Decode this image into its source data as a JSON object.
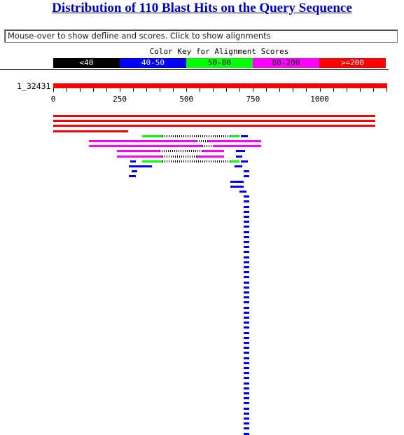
{
  "title": "Distribution of 110 Blast Hits on the Query Sequence",
  "info_text": "Mouse-over to show defline and scores. Click to show alignments",
  "color_key": {
    "title": "Color Key for Alignment Scores",
    "segments": [
      {
        "label": "<40",
        "bg": "#000000",
        "fg": "#ffffff"
      },
      {
        "label": "40-50",
        "bg": "#0000ff",
        "fg": "#ffffff"
      },
      {
        "label": "50-80",
        "bg": "#00ff00",
        "fg": "#000000"
      },
      {
        "label": "80-200",
        "bg": "#ff00ff",
        "fg": "#000000"
      },
      {
        "label": ">=200",
        "bg": "#ff0000",
        "fg": "#ffffff"
      }
    ]
  },
  "query": {
    "label": "1_32431",
    "color": "#ff0000",
    "length": 1210,
    "tick_labels": [
      "0",
      "250",
      "500",
      "750",
      "1000"
    ],
    "tick_values": [
      0,
      250,
      500,
      750,
      1000
    ]
  },
  "hits": [
    {
      "segments": [
        {
          "start": 1,
          "end": 1210,
          "color": "#ff0000"
        }
      ]
    },
    {
      "segments": [
        {
          "start": 1,
          "end": 1210,
          "color": "#ff0000"
        }
      ]
    },
    {
      "segments": [
        {
          "start": 1,
          "end": 1210,
          "color": "#ff0000"
        }
      ]
    },
    {
      "segments": [
        {
          "start": 1,
          "end": 280,
          "color": "#ff0000"
        }
      ]
    },
    {
      "segments": [
        {
          "start": 335,
          "end": 410,
          "color": "#00ff00"
        },
        {
          "start": 410,
          "end": 665,
          "hatch": true
        },
        {
          "start": 665,
          "end": 700,
          "color": "#00ff00"
        },
        {
          "start": 705,
          "end": 730,
          "color": "#0000ff"
        }
      ]
    },
    {
      "segments": [
        {
          "start": 135,
          "end": 540,
          "color": "#ff00ff"
        },
        {
          "start": 540,
          "end": 580,
          "hatch": true
        },
        {
          "start": 580,
          "end": 780,
          "color": "#ff00ff"
        }
      ]
    },
    {
      "segments": [
        {
          "start": 135,
          "end": 560,
          "color": "#ff00ff"
        },
        {
          "start": 560,
          "end": 600,
          "hatch": true
        },
        {
          "start": 600,
          "end": 780,
          "color": "#ff00ff"
        }
      ]
    },
    {
      "segments": [
        {
          "start": 240,
          "end": 400,
          "color": "#ff00ff"
        },
        {
          "start": 400,
          "end": 560,
          "hatch": true
        },
        {
          "start": 560,
          "end": 640,
          "color": "#ff00ff"
        },
        {
          "start": 685,
          "end": 720,
          "color": "#0000ff"
        }
      ]
    },
    {
      "segments": [
        {
          "start": 240,
          "end": 410,
          "color": "#ff00ff"
        },
        {
          "start": 410,
          "end": 540,
          "hatch": true
        },
        {
          "start": 540,
          "end": 640,
          "color": "#ff00ff"
        },
        {
          "start": 685,
          "end": 710,
          "color": "#0000ff"
        }
      ]
    },
    {
      "segments": [
        {
          "start": 290,
          "end": 310,
          "color": "#0000ff"
        },
        {
          "start": 335,
          "end": 410,
          "color": "#00ff00"
        },
        {
          "start": 410,
          "end": 665,
          "hatch": true
        },
        {
          "start": 665,
          "end": 700,
          "color": "#00ff00"
        },
        {
          "start": 705,
          "end": 730,
          "color": "#0000ff"
        }
      ]
    },
    {
      "segments": [
        {
          "start": 285,
          "end": 370,
          "color": "#0000ff"
        },
        {
          "start": 680,
          "end": 710,
          "color": "#0000ff"
        }
      ]
    },
    {
      "segments": [
        {
          "start": 295,
          "end": 315,
          "color": "#0000ff"
        },
        {
          "start": 715,
          "end": 735,
          "color": "#0000ff"
        }
      ]
    },
    {
      "segments": [
        {
          "start": 285,
          "end": 310,
          "color": "#0000ff"
        },
        {
          "start": 715,
          "end": 735,
          "color": "#0000ff"
        }
      ]
    },
    {
      "segments": [
        {
          "start": 665,
          "end": 715,
          "color": "#0000ff"
        }
      ]
    },
    {
      "segments": [
        {
          "start": 665,
          "end": 715,
          "color": "#0000ff"
        }
      ]
    },
    {
      "segments": [
        {
          "start": 700,
          "end": 725,
          "color": "#0000ff"
        }
      ]
    },
    {
      "repeat": 48,
      "segments": [
        {
          "start": 715,
          "end": 735,
          "color": "#0000ff"
        }
      ]
    }
  ]
}
